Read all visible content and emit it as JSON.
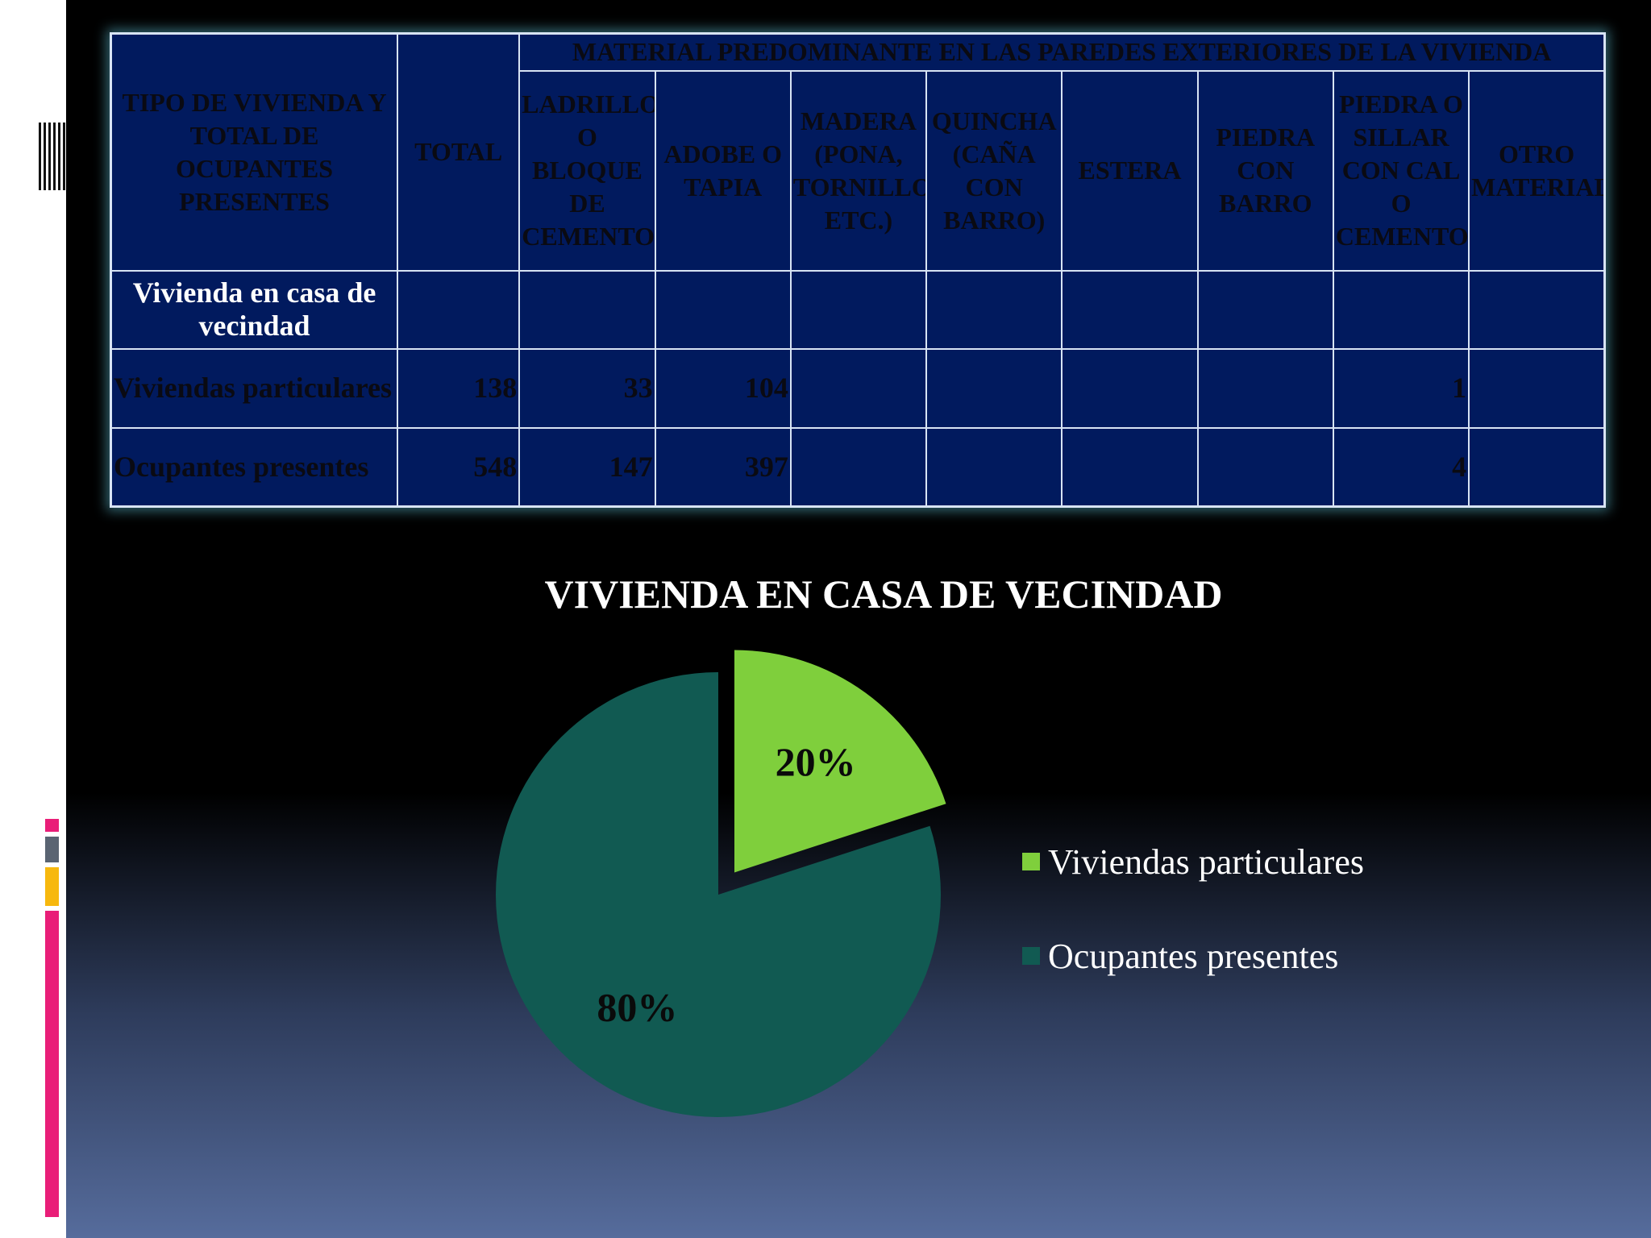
{
  "table": {
    "header_row_label": "TIPO DE VIVIENDA Y TOTAL DE OCUPANTES PRESENTES",
    "total_label": "TOTAL",
    "group_label": "MATERIAL PREDOMINANTE EN LAS PAREDES EXTERIORES DE LA VIVIENDA",
    "columns": [
      "LADRILLO O BLOQUE DE CEMENTO",
      "ADOBE O TAPIA",
      "MADERA (PONA, TORNILLO, ETC.)",
      "QUINCHA (CAÑA CON BARRO)",
      "ESTERA",
      "PIEDRA CON BARRO",
      "PIEDRA O SILLAR CON CAL O CEMENTO",
      "OTRO MATERIAL"
    ],
    "rows": [
      {
        "label": "Vivienda en casa de vecindad",
        "total": "",
        "values": [
          "",
          "",
          "",
          "",
          "",
          "",
          "",
          ""
        ]
      },
      {
        "label": "Viviendas particulares",
        "total": "138",
        "values": [
          "33",
          "104",
          "",
          "",
          "",
          "",
          "1",
          ""
        ]
      },
      {
        "label": "Ocupantes presentes",
        "total": "548",
        "values": [
          "147",
          "397",
          "",
          "",
          "",
          "",
          "4",
          ""
        ]
      }
    ]
  },
  "chart_data": {
    "type": "pie",
    "title": "VIVIENDA EN CASA DE VECINDAD",
    "categories": [
      "Viviendas particulares",
      "Ocupantes presentes"
    ],
    "values": [
      20,
      80
    ],
    "labels": [
      "20%",
      "80%"
    ],
    "colors": [
      "#7fcf3c",
      "#115a52"
    ],
    "exploded": [
      "Viviendas particulares"
    ],
    "legend_position": "right"
  }
}
